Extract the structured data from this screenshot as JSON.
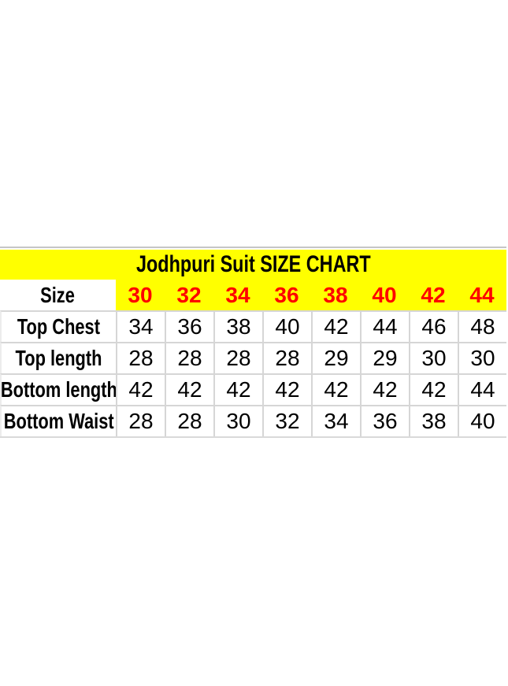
{
  "page": {
    "background": "#ffffff"
  },
  "size_chart": {
    "title": "Jodhpuri Suit SIZE CHART",
    "colors": {
      "banner_bg": "#ffff00",
      "header_size_text": "#fe0000",
      "body_text": "#000000",
      "grid_line": "#d6d6d6",
      "cell_bg": "#ffffff"
    },
    "header": {
      "label": "Size",
      "sizes": [
        "30",
        "32",
        "34",
        "36",
        "38",
        "40",
        "42",
        "44"
      ]
    },
    "rows": [
      {
        "label": "Top Chest",
        "values": [
          "34",
          "36",
          "38",
          "40",
          "42",
          "44",
          "46",
          "48"
        ]
      },
      {
        "label": "Top length",
        "values": [
          "28",
          "28",
          "28",
          "28",
          "29",
          "29",
          "30",
          "30"
        ]
      },
      {
        "label": "Bottom length",
        "values": [
          "42",
          "42",
          "42",
          "42",
          "42",
          "42",
          "42",
          "44"
        ]
      },
      {
        "label": "Bottom Waist",
        "values": [
          "28",
          "28",
          "30",
          "32",
          "34",
          "36",
          "38",
          "40"
        ]
      }
    ]
  },
  "chart_data": {
    "type": "table",
    "title": "Jodhpuri Suit SIZE CHART",
    "categories": [
      30,
      32,
      34,
      36,
      38,
      40,
      42,
      44
    ],
    "row_header_label": "Size",
    "series": [
      {
        "name": "Top Chest",
        "values": [
          34,
          36,
          38,
          40,
          42,
          44,
          46,
          48
        ]
      },
      {
        "name": "Top length",
        "values": [
          28,
          28,
          28,
          28,
          29,
          29,
          30,
          30
        ]
      },
      {
        "name": "Bottom length",
        "values": [
          42,
          42,
          42,
          42,
          42,
          42,
          42,
          44
        ]
      },
      {
        "name": "Bottom Waist",
        "values": [
          28,
          28,
          30,
          32,
          34,
          36,
          38,
          40
        ]
      }
    ]
  }
}
